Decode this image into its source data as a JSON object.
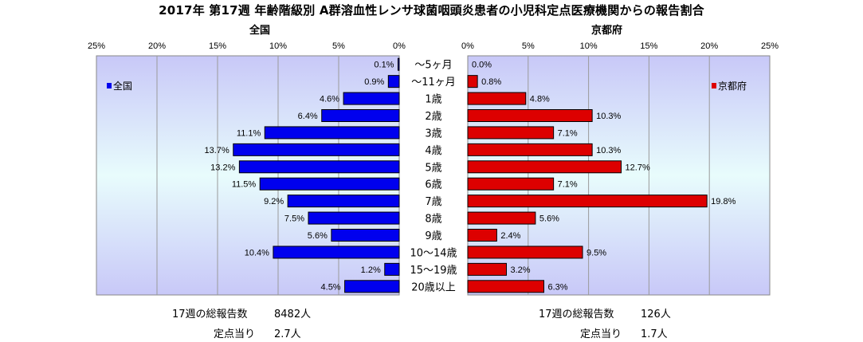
{
  "title": "2017年 第17週 年齢階級別 A群溶血性レンサ球菌咽頭炎患者の小児科定点医療機関からの報告割合",
  "chart_data": {
    "type": "bar",
    "orientation": "horizontal",
    "categories": [
      "～5ヶ月",
      "～11ヶ月",
      "1歳",
      "2歳",
      "3歳",
      "4歳",
      "5歳",
      "6歳",
      "7歳",
      "8歳",
      "9歳",
      "10～14歳",
      "15～19歳",
      "20歳以上"
    ],
    "series": [
      {
        "name": "全国",
        "color": "#0000ee",
        "values": [
          0.1,
          0.9,
          4.6,
          6.4,
          11.1,
          13.7,
          13.2,
          11.5,
          9.2,
          7.5,
          5.6,
          10.4,
          1.2,
          4.5
        ],
        "labels": [
          "0.1%",
          "0.9%",
          "4.6%",
          "6.4%",
          "11.1%",
          "13.7%",
          "13.2%",
          "11.5%",
          "9.2%",
          "7.5%",
          "5.6%",
          "10.4%",
          "1.2%",
          "4.5%"
        ]
      },
      {
        "name": "京都府",
        "color": "#dd0000",
        "values": [
          0.0,
          0.8,
          4.8,
          10.3,
          7.1,
          10.3,
          12.7,
          7.1,
          19.8,
          5.6,
          2.4,
          9.5,
          3.2,
          6.3
        ],
        "labels": [
          "0.0%",
          "0.8%",
          "4.8%",
          "10.3%",
          "7.1%",
          "10.3%",
          "12.7%",
          "7.1%",
          "19.8%",
          "5.6%",
          "2.4%",
          "9.5%",
          "3.2%",
          "6.3%"
        ]
      }
    ],
    "xlim": [
      0,
      25
    ],
    "ticks": [
      "0%",
      "5%",
      "10%",
      "15%",
      "20%",
      "25%"
    ],
    "left_ticks": [
      "25%",
      "20%",
      "15%",
      "10%",
      "5%",
      "0%"
    ],
    "panel_titles": [
      "全国",
      "京都府"
    ],
    "legend": [
      "全国",
      "京都府"
    ],
    "grid": true,
    "plot_background_top": "#c8c8f8",
    "plot_background_mid": "#e8fcfc"
  },
  "summary": {
    "national": {
      "total_label": "17週の総報告数",
      "total_value": "8482人",
      "per_label": "定点当り",
      "per_value": "2.7人"
    },
    "kyoto": {
      "total_label": "17週の総報告数",
      "total_value": "126人",
      "per_label": "定点当り",
      "per_value": "1.7人"
    }
  }
}
